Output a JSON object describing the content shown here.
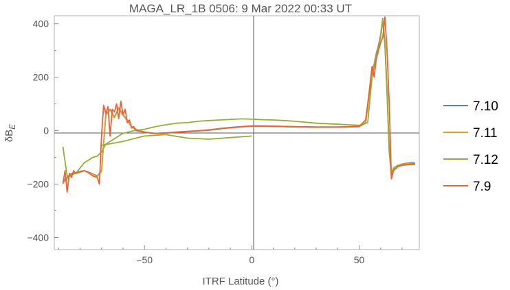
{
  "chart_data": {
    "type": "line",
    "title": "MAGA_LR_1B 0506: 9 Mar 2022 00:33 UT",
    "xlabel": "ITRF Latitude (°)",
    "ylabel": {
      "main": "δB",
      "sub": "E"
    },
    "xlim": [
      -92,
      78
    ],
    "ylim": [
      -445,
      430
    ],
    "xticks": [
      -50,
      0,
      50
    ],
    "yticks": [
      -400,
      -200,
      0,
      200,
      400
    ],
    "grid": false,
    "origin_axes": true,
    "legend_position": "right",
    "colors": {
      "7.10": "#5e81b5",
      "7.11": "#e19c24",
      "7.12": "#8fb032",
      "7.9": "#eb6235"
    },
    "series": [
      {
        "name": "7.10",
        "color": "#5e81b5",
        "x": [
          -88,
          -86,
          -84,
          -82,
          -80,
          -78,
          -76,
          -74,
          -72,
          -70,
          -68,
          -66,
          -64,
          -62,
          -60,
          -58,
          -56,
          -54,
          -50,
          -45,
          -40,
          -35,
          -30,
          -25,
          -20,
          -15,
          -10,
          -5,
          0,
          5,
          10,
          20,
          30,
          40,
          50,
          53,
          55,
          56,
          57,
          58,
          59,
          60,
          61,
          62,
          63,
          64,
          65,
          66,
          68,
          70,
          72,
          74,
          76
        ],
        "y": [
          -190,
          -175,
          -160,
          -158,
          -152,
          -150,
          -155,
          -162,
          -170,
          -150,
          60,
          80,
          50,
          85,
          60,
          40,
          15,
          5,
          -5,
          -10,
          -8,
          -5,
          -3,
          0,
          3,
          8,
          12,
          15,
          18,
          18,
          17,
          15,
          14,
          14,
          16,
          30,
          160,
          220,
          250,
          290,
          320,
          360,
          420,
          330,
          150,
          -70,
          -165,
          -140,
          -130,
          -125,
          -122,
          -120,
          -120
        ]
      },
      {
        "name": "7.11",
        "color": "#e19c24",
        "x": [
          -88,
          -86,
          -84,
          -82,
          -80,
          -78,
          -76,
          -74,
          -72,
          -70,
          -68,
          -66,
          -64,
          -62,
          -60,
          -58,
          -56,
          -54,
          -50,
          -45,
          -40,
          -35,
          -30,
          -25,
          -20,
          -15,
          -10,
          -5,
          0,
          5,
          10,
          20,
          30,
          40,
          50,
          53,
          55,
          56,
          57,
          58,
          59,
          60,
          61,
          62,
          63,
          64,
          65,
          66,
          68,
          70,
          72,
          74,
          76
        ],
        "y": [
          -195,
          -180,
          -162,
          -160,
          -153,
          -150,
          -156,
          -163,
          -172,
          -152,
          58,
          78,
          48,
          82,
          58,
          38,
          14,
          4,
          -6,
          -11,
          -9,
          -6,
          -4,
          -1,
          2,
          7,
          11,
          14,
          17,
          17,
          16,
          14,
          13,
          13,
          15,
          28,
          155,
          215,
          245,
          285,
          315,
          355,
          415,
          325,
          145,
          -75,
          -170,
          -145,
          -132,
          -126,
          -124,
          -122,
          -122
        ]
      },
      {
        "name": "7.12",
        "color": "#8fb032",
        "x": [
          -88,
          -86,
          -84,
          -82,
          -80,
          -78,
          -76,
          -74,
          -72,
          -70,
          -68,
          -66,
          -64,
          -62,
          -60,
          -55,
          -50,
          -45,
          -40,
          -35,
          -30,
          -25,
          -20,
          -15,
          -10,
          -5,
          0,
          5,
          10,
          15,
          20,
          30,
          40,
          50,
          54,
          56,
          58,
          60,
          61,
          62,
          63,
          64,
          65,
          66,
          68,
          70,
          72,
          74,
          76
        ],
        "y": [
          -60,
          -170,
          -165,
          -160,
          -140,
          -120,
          -110,
          -100,
          -95,
          -80,
          -50,
          -40,
          -30,
          -20,
          -10,
          0,
          5,
          15,
          22,
          28,
          30,
          35,
          38,
          40,
          42,
          44,
          43,
          41,
          40,
          38,
          35,
          28,
          24,
          20,
          30,
          200,
          280,
          350,
          410,
          320,
          140,
          -80,
          -160,
          -140,
          -130,
          -128,
          -127,
          -127,
          -127
        ]
      },
      {
        "name": "7.12",
        "color": "#8fb032",
        "x": [
          -70,
          -60,
          -50,
          -40,
          -30,
          -20,
          -10,
          0
        ],
        "y": [
          -55,
          -40,
          -20,
          -15,
          -28,
          -32,
          -26,
          -20
        ]
      },
      {
        "name": "7.9",
        "color": "#eb6235",
        "x": [
          -88,
          -87,
          -86,
          -85,
          -84,
          -83,
          -82,
          -80,
          -78,
          -76,
          -74,
          -72,
          -71,
          -70,
          -69,
          -68,
          -67,
          -66,
          -65,
          -64,
          -63,
          -62,
          -61,
          -60,
          -59,
          -58,
          -57,
          -56,
          -55,
          -54,
          -50,
          -45,
          -40,
          -35,
          -30,
          -25,
          -20,
          -15,
          -10,
          -5,
          0,
          5,
          10,
          20,
          30,
          40,
          50,
          53,
          54,
          55,
          56,
          57,
          58,
          59,
          60,
          61,
          62,
          63,
          64,
          65,
          66,
          68,
          70,
          72,
          74,
          76
        ],
        "y": [
          -200,
          -150,
          -230,
          -160,
          -175,
          -150,
          -160,
          -155,
          -150,
          -158,
          -170,
          -175,
          -200,
          -20,
          95,
          65,
          90,
          -20,
          80,
          70,
          100,
          45,
          110,
          60,
          80,
          30,
          40,
          10,
          15,
          0,
          -6,
          -11,
          -9,
          -6,
          -4,
          -1,
          2,
          7,
          11,
          14,
          17,
          17,
          16,
          14,
          13,
          13,
          15,
          40,
          100,
          170,
          240,
          200,
          270,
          300,
          330,
          350,
          425,
          300,
          100,
          -180,
          -150,
          -135,
          -130,
          -128,
          -125,
          -125
        ]
      }
    ]
  }
}
